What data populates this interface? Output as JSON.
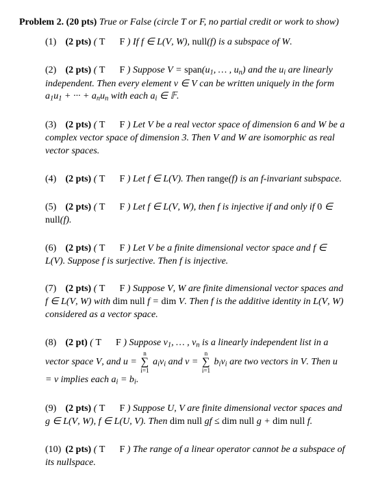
{
  "header": {
    "problem_label": "Problem 2.",
    "points": "(20 pts)",
    "instructions": "True or False (circle T or F, no partial credit or work to show)"
  },
  "items": [
    {
      "num": "(1)",
      "pts": "(2 pts)",
      "tf": "( T        F )",
      "body": "If f ∈ 𝓛(V, W), null(f) is a subspace of W."
    },
    {
      "num": "(2)",
      "pts": "(2 pts)",
      "tf": "( T        F )",
      "body": "Suppose V = span(u₁, … , uₙ) and the uᵢ are linearly independent. Then every element v ∈ V can be written uniquely in the form a₁u₁ + ··· + aₙuₙ with each aᵢ ∈ 𝔽."
    },
    {
      "num": "(3)",
      "pts": "(2 pts)",
      "tf": "( T        F )",
      "body": "Let V be a real vector space of dimension 6 and W be a complex vector space of dimension 3. Then V and W are isomorphic as real vector spaces."
    },
    {
      "num": "(4)",
      "pts": "(2 pts)",
      "tf": "( T        F )",
      "body": "Let f ∈ 𝓛(V). Then range(f) is an f-invariant subspace."
    },
    {
      "num": "(5)",
      "pts": "(2 pts)",
      "tf": "( T        F )",
      "body": "Let f ∈ 𝓛(V, W), then f is injective if and only if 0 ∈ null(f)."
    },
    {
      "num": "(6)",
      "pts": "(2 pts)",
      "tf": "( T        F )",
      "body": "Let V be a finite dimensional vector space and f ∈ 𝓛(V). Suppose f is surjective. Then f is injective."
    },
    {
      "num": "(7)",
      "pts": "(2 pts)",
      "tf": "( T        F )",
      "body": "Suppose V, W are finite dimensional vector spaces and f ∈ 𝓛(V, W) with dim null f = dim V. Then f is the additive identity in 𝓛(V, W) considered as a vector space."
    },
    {
      "num": "(8)",
      "pts": "(2 pt)",
      "tf": "( T        F )",
      "body_pre": "Suppose v₁, … , vₙ is a linearly independent list in a vector space V, and u = ",
      "sum1_top": "n",
      "sum1_bot": "i=1",
      "sum1_term": "aᵢvᵢ",
      "mid": " and v = ",
      "sum2_top": "n",
      "sum2_bot": "i=1",
      "sum2_term": "bᵢvᵢ",
      "body_post": " are two vectors in V. Then u = v implies each aᵢ = bᵢ."
    },
    {
      "num": "(9)",
      "pts": "(2 pts)",
      "tf": "( T        F )",
      "body": "Suppose U, V are finite dimensional vector spaces and g ∈ 𝓛(V, W), f ∈ 𝓛(U, V). Then dim null gf ≤ dim null g + dim null f."
    },
    {
      "num": "(10)",
      "pts": "(2 pts)",
      "tf": "( T        F )",
      "body": "The range of a linear operator cannot be a subspace of its nullspace."
    }
  ]
}
